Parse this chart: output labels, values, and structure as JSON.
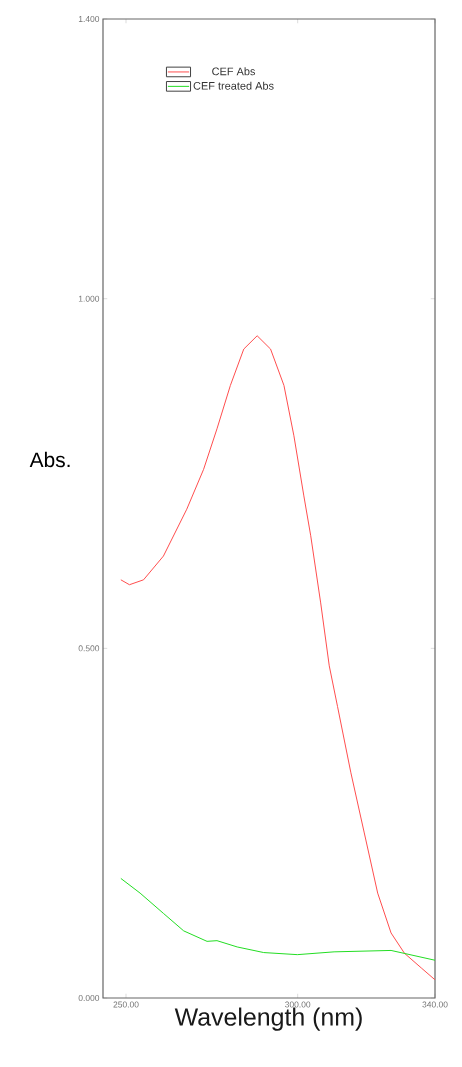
{
  "chart_data": {
    "type": "line",
    "xlabel": "Wavelength (nm)",
    "ylabel": "Abs.",
    "xlim": [
      243.3,
      340
    ],
    "ylim": [
      0,
      1.4
    ],
    "xticks": [
      {
        "value": 250,
        "label": "250.00"
      },
      {
        "value": 300,
        "label": "300.00"
      },
      {
        "value": 340,
        "label": "340.00"
      }
    ],
    "yticks": [
      {
        "value": 0,
        "label": "0.000"
      },
      {
        "value": 0.5,
        "label": "0.500"
      },
      {
        "value": 1.0,
        "label": "1.000"
      },
      {
        "value": 1.4,
        "label": "1.400"
      }
    ],
    "grid": false,
    "legend": "top",
    "marker": "none",
    "line_style": "solid",
    "series": [
      {
        "name": "CEF Abs",
        "color": "#ff4d4d",
        "x": [
          248.5,
          251,
          255.1,
          260.9,
          267.7,
          272.6,
          276.5,
          280.4,
          284.3,
          288.2,
          292.1,
          296,
          298.9,
          301.8,
          303.8,
          306.7,
          309.2,
          311.6,
          315.5,
          319.4,
          323.3,
          327.2,
          331.1,
          336,
          340
        ],
        "values": [
          0.598,
          0.591,
          0.598,
          0.632,
          0.699,
          0.756,
          0.814,
          0.876,
          0.928,
          0.947,
          0.928,
          0.876,
          0.804,
          0.718,
          0.661,
          0.565,
          0.475,
          0.417,
          0.322,
          0.236,
          0.15,
          0.093,
          0.064,
          0.043,
          0.026
        ]
      },
      {
        "name": "CEF treated Abs",
        "color": "#22dd22",
        "x": [
          248.5,
          254.1,
          260.9,
          266.8,
          273.6,
          276.5,
          282.4,
          290.1,
          299.9,
          310.6,
          327.2,
          340
        ],
        "values": [
          0.171,
          0.15,
          0.121,
          0.096,
          0.081,
          0.082,
          0.073,
          0.065,
          0.062,
          0.066,
          0.068,
          0.054
        ]
      }
    ]
  }
}
